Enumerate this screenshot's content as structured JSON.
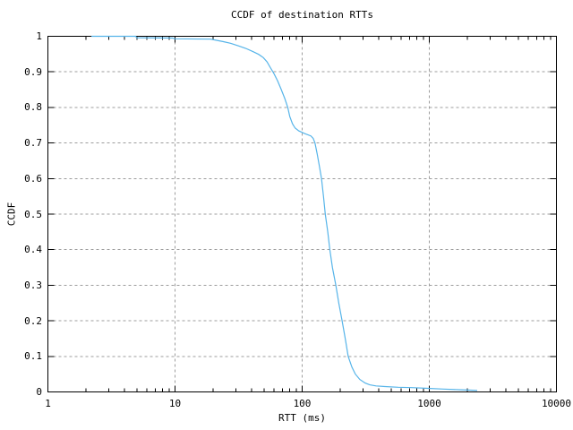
{
  "chart_data": {
    "type": "line",
    "title": "CCDF of destination RTTs",
    "xlabel": "RTT (ms)",
    "ylabel": "CCDF",
    "x_scale": "log",
    "xlim": [
      1,
      10000
    ],
    "ylim": [
      0,
      1
    ],
    "grid": true,
    "legend": "none",
    "x_ticks": [
      {
        "value": 1,
        "label": "1"
      },
      {
        "value": 10,
        "label": "10"
      },
      {
        "value": 100,
        "label": "100"
      },
      {
        "value": 1000,
        "label": "1000"
      },
      {
        "value": 10000,
        "label": "10000"
      }
    ],
    "x_minor_tick_multiples": [
      2,
      3,
      4,
      5,
      6,
      7,
      8,
      9
    ],
    "y_ticks": [
      {
        "value": 0,
        "label": "0"
      },
      {
        "value": 0.1,
        "label": "0.1"
      },
      {
        "value": 0.2,
        "label": "0.2"
      },
      {
        "value": 0.3,
        "label": "0.3"
      },
      {
        "value": 0.4,
        "label": "0.4"
      },
      {
        "value": 0.5,
        "label": "0.5"
      },
      {
        "value": 0.6,
        "label": "0.6"
      },
      {
        "value": 0.7,
        "label": "0.7"
      },
      {
        "value": 0.8,
        "label": "0.8"
      },
      {
        "value": 0.9,
        "label": "0.9"
      },
      {
        "value": 1,
        "label": "1"
      }
    ],
    "colors": {
      "background": "#ffffff",
      "axis": "#000000",
      "text": "#000000",
      "grid": "#9c9c9c",
      "series": "#56b4e9"
    },
    "series": [
      {
        "name": "CCDF of destination RTTs",
        "color": "#56b4e9",
        "points": [
          [
            2.2,
            1.0
          ],
          [
            4.9,
            1.0
          ],
          [
            5.0,
            0.996
          ],
          [
            9.6,
            0.995
          ],
          [
            9.9,
            0.993
          ],
          [
            19,
            0.992
          ],
          [
            21,
            0.989
          ],
          [
            24,
            0.985
          ],
          [
            27.5,
            0.98
          ],
          [
            31.5,
            0.973
          ],
          [
            36,
            0.966
          ],
          [
            41,
            0.957
          ],
          [
            45.5,
            0.949
          ],
          [
            49.5,
            0.94
          ],
          [
            53,
            0.928
          ],
          [
            56,
            0.913
          ],
          [
            60,
            0.895
          ],
          [
            64,
            0.875
          ],
          [
            68,
            0.853
          ],
          [
            73,
            0.825
          ],
          [
            77,
            0.8
          ],
          [
            80,
            0.774
          ],
          [
            84,
            0.754
          ],
          [
            88,
            0.742
          ],
          [
            94,
            0.734
          ],
          [
            104,
            0.727
          ],
          [
            117,
            0.72
          ],
          [
            122,
            0.713
          ],
          [
            126,
            0.7
          ],
          [
            131,
            0.67
          ],
          [
            136,
            0.638
          ],
          [
            142,
            0.6
          ],
          [
            147,
            0.55
          ],
          [
            152,
            0.5
          ],
          [
            159,
            0.45
          ],
          [
            165,
            0.4
          ],
          [
            173,
            0.35
          ],
          [
            184,
            0.3
          ],
          [
            194,
            0.25
          ],
          [
            206,
            0.2
          ],
          [
            218,
            0.15
          ],
          [
            230,
            0.1
          ],
          [
            246,
            0.07
          ],
          [
            262,
            0.05
          ],
          [
            284,
            0.035
          ],
          [
            313,
            0.025
          ],
          [
            340,
            0.02
          ],
          [
            381,
            0.017
          ],
          [
            448,
            0.015
          ],
          [
            570,
            0.013
          ],
          [
            730,
            0.012
          ],
          [
            975,
            0.01
          ],
          [
            1285,
            0.008
          ],
          [
            1780,
            0.006
          ],
          [
            2090,
            0.005
          ],
          [
            2380,
            0.004
          ]
        ]
      }
    ]
  }
}
